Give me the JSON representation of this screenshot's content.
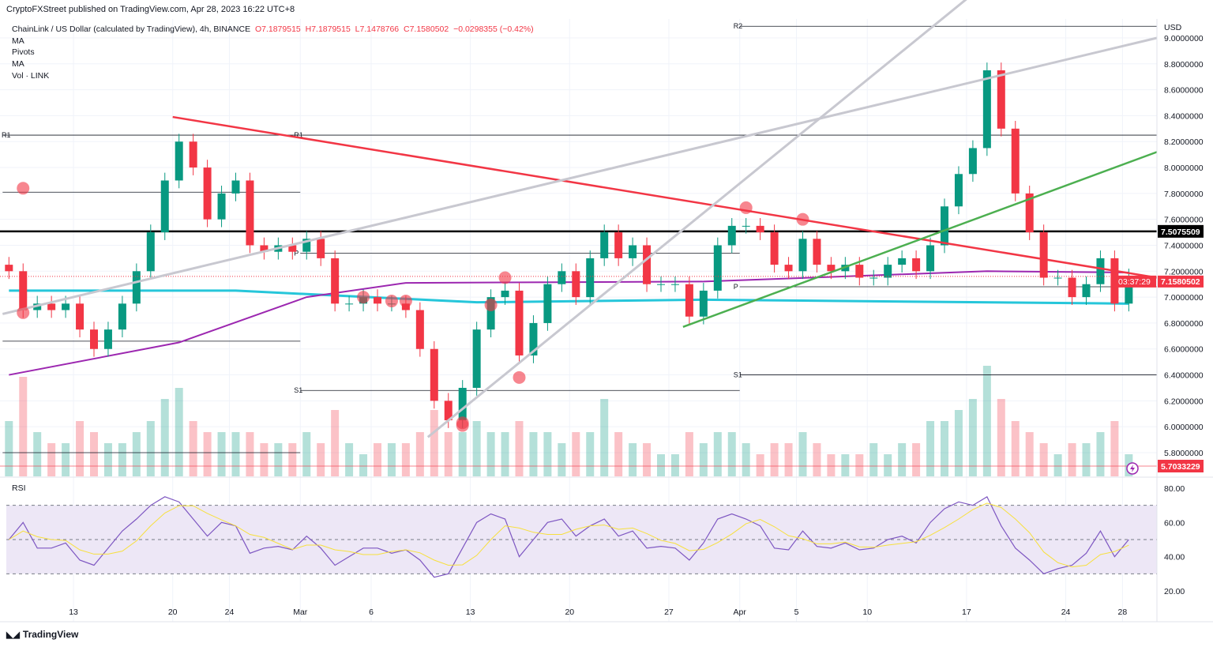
{
  "publisher_line": "CryptoFXStreet published on TradingView.com, Apr 28, 2023 16:22 UTC+8",
  "legend": {
    "symbol": "ChainLink / US Dollar (calculated by TradingView), 4h, BINANCE",
    "open": "O7.1879515",
    "high": "H7.1879515",
    "low": "L7.1478766",
    "close": "C7.1580502",
    "change": "−0.0298355 (−0.42%)",
    "indicators": [
      "MA",
      "Pivots",
      "MA",
      "Vol · LINK"
    ]
  },
  "rsi_label": "RSI",
  "brand": "TradingView",
  "currency": "USD",
  "colors": {
    "up": "#089981",
    "down": "#f23645",
    "resistance": "#f23645",
    "support_trend": "#4caf50",
    "trend_gray": "#c8c8d0",
    "ma_cyan": "#26c6da",
    "ma_purple": "#9c27b0",
    "rsi": "#7e57c2",
    "rsi_ma": "#f7e03d",
    "rsi_band": "#ede7f6"
  },
  "chart_data": [
    {
      "type": "candlestick",
      "ylim": [
        5.7,
        9.1
      ],
      "y_ticks": [
        "9.0000000",
        "8.8000000",
        "8.6000000",
        "8.4000000",
        "8.2000000",
        "8.0000000",
        "7.8000000",
        "7.6000000",
        "7.4000000",
        "7.2000000",
        "7.0000000",
        "6.8000000",
        "6.6000000",
        "6.4000000",
        "6.2000000",
        "6.0000000",
        "5.8000000"
      ],
      "x_ticks": [
        {
          "label": "13",
          "day": "Feb 13"
        },
        {
          "label": "20",
          "day": "Feb 20"
        },
        {
          "label": "24",
          "day": "Feb 24"
        },
        {
          "label": "Mar",
          "day": "Mar 1"
        },
        {
          "label": "6",
          "day": "Mar 6"
        },
        {
          "label": "13",
          "day": "Mar 13"
        },
        {
          "label": "20",
          "day": "Mar 20"
        },
        {
          "label": "27",
          "day": "Mar 27"
        },
        {
          "label": "Apr",
          "day": "Apr 1"
        },
        {
          "label": "5",
          "day": "Apr 5"
        },
        {
          "label": "10",
          "day": "Apr 10"
        },
        {
          "label": "17",
          "day": "Apr 17"
        },
        {
          "label": "24",
          "day": "Apr 24"
        },
        {
          "label": "28",
          "day": "Apr 28"
        }
      ],
      "days": [
        "Feb 8",
        "Feb 9",
        "Feb 10",
        "Feb 11",
        "Feb 12",
        "Feb 13",
        "Feb 14",
        "Feb 15",
        "Feb 16",
        "Feb 17",
        "Feb 18",
        "Feb 19",
        "Feb 20",
        "Feb 21",
        "Feb 22",
        "Feb 23",
        "Feb 24",
        "Feb 25",
        "Feb 26",
        "Feb 27",
        "Feb 28",
        "Mar 1",
        "Mar 2",
        "Mar 3",
        "Mar 4",
        "Mar 5",
        "Mar 6",
        "Mar 7",
        "Mar 8",
        "Mar 9",
        "Mar 10",
        "Mar 11",
        "Mar 12",
        "Mar 13",
        "Mar 14",
        "Mar 15",
        "Mar 16",
        "Mar 17",
        "Mar 18",
        "Mar 19",
        "Mar 20",
        "Mar 21",
        "Mar 22",
        "Mar 23",
        "Mar 24",
        "Mar 25",
        "Mar 26",
        "Mar 27",
        "Mar 28",
        "Mar 29",
        "Mar 30",
        "Mar 31",
        "Apr 1",
        "Apr 2",
        "Apr 3",
        "Apr 4",
        "Apr 5",
        "Apr 6",
        "Apr 7",
        "Apr 8",
        "Apr 9",
        "Apr 10",
        "Apr 11",
        "Apr 12",
        "Apr 13",
        "Apr 14",
        "Apr 15",
        "Apr 16",
        "Apr 17",
        "Apr 18",
        "Apr 19",
        "Apr 20",
        "Apr 21",
        "Apr 22",
        "Apr 23",
        "Apr 24",
        "Apr 25",
        "Apr 26",
        "Apr 27",
        "Apr 28"
      ],
      "close": [
        7.2,
        6.9,
        6.95,
        6.9,
        6.95,
        6.75,
        6.6,
        6.75,
        6.95,
        7.2,
        7.5,
        7.9,
        8.2,
        8.0,
        7.6,
        7.8,
        7.9,
        7.4,
        7.35,
        7.4,
        7.35,
        7.45,
        7.3,
        6.95,
        6.95,
        7.0,
        6.95,
        6.95,
        6.9,
        6.6,
        6.2,
        6.05,
        6.3,
        6.75,
        7.0,
        7.05,
        6.55,
        6.8,
        7.1,
        7.2,
        7.0,
        7.3,
        7.5,
        7.3,
        7.4,
        7.1,
        7.1,
        7.1,
        6.85,
        7.05,
        7.4,
        7.55,
        7.55,
        7.5,
        7.25,
        7.2,
        7.45,
        7.25,
        7.2,
        7.25,
        7.15,
        7.15,
        7.25,
        7.3,
        7.2,
        7.4,
        7.7,
        7.95,
        8.15,
        8.75,
        8.3,
        7.8,
        7.5,
        7.15,
        7.15,
        7.0,
        7.1,
        7.3,
        6.95,
        7.16
      ],
      "volume_relative": [
        0.5,
        0.9,
        0.4,
        0.3,
        0.3,
        0.5,
        0.4,
        0.3,
        0.3,
        0.4,
        0.5,
        0.7,
        0.8,
        0.5,
        0.4,
        0.4,
        0.4,
        0.4,
        0.3,
        0.3,
        0.3,
        0.4,
        0.3,
        0.6,
        0.3,
        0.2,
        0.3,
        0.3,
        0.3,
        0.4,
        0.6,
        0.4,
        0.4,
        0.5,
        0.4,
        0.4,
        0.5,
        0.4,
        0.4,
        0.3,
        0.4,
        0.4,
        0.7,
        0.4,
        0.3,
        0.3,
        0.2,
        0.2,
        0.4,
        0.3,
        0.4,
        0.4,
        0.3,
        0.2,
        0.3,
        0.3,
        0.4,
        0.3,
        0.2,
        0.2,
        0.2,
        0.3,
        0.2,
        0.3,
        0.3,
        0.5,
        0.5,
        0.6,
        0.7,
        1.0,
        0.7,
        0.5,
        0.4,
        0.3,
        0.2,
        0.3,
        0.3,
        0.4,
        0.5,
        0.2
      ],
      "horizontal_level": {
        "value": 7.5075509,
        "label": "7.5075509"
      },
      "last_price": {
        "label": "7.1580502",
        "countdown": "03:37:29"
      },
      "volume_last": {
        "label": "5.7033229"
      },
      "pivots": [
        {
          "from": "Feb 8",
          "to": "Mar 1",
          "levels": [
            {
              "name": "R1",
              "value": 8.25
            },
            {
              "name": "",
              "value": 7.81
            },
            {
              "name": "",
              "value": 6.66
            },
            {
              "name": "",
              "value": 5.8
            }
          ]
        },
        {
          "from": "Mar 1",
          "to": "Apr 1",
          "levels": [
            {
              "name": "P",
              "value": 7.34
            },
            {
              "name": "S1",
              "value": 6.28
            }
          ]
        },
        {
          "from": "Mar 1",
          "to": "Apr 29",
          "levels": [
            {
              "name": "R1",
              "value": 8.25
            }
          ]
        },
        {
          "from": "Apr 1",
          "to": "Apr 29",
          "levels": [
            {
              "name": "R2",
              "value": 9.09
            },
            {
              "name": "P",
              "value": 7.08
            },
            {
              "name": "S1",
              "value": 6.4
            }
          ]
        }
      ],
      "trendlines": [
        {
          "name": "descending-resistance",
          "color": "#f23645",
          "points": [
            [
              "Feb 20",
              8.39
            ],
            [
              "Apr 29",
              7.15
            ]
          ]
        },
        {
          "name": "ascending-support",
          "color": "#4caf50",
          "points": [
            [
              "Mar 28",
              6.77
            ],
            [
              "Apr 29",
              8.12
            ]
          ]
        },
        {
          "name": "long-gray-trend",
          "color": "#c8c8d0",
          "points": [
            [
              "Feb 8",
              6.87
            ],
            [
              "Apr 29",
              9.0
            ]
          ]
        },
        {
          "name": "steep-gray-trend",
          "color": "#c8c8d0",
          "points": [
            [
              "Mar 10",
              5.92
            ],
            [
              "Apr 17",
              9.3
            ]
          ]
        }
      ],
      "moving_averages": [
        {
          "color": "#26c6da",
          "points": [
            [
              "Feb 8",
              7.05
            ],
            [
              "Feb 24",
              7.05
            ],
            [
              "Mar 13",
              6.96
            ],
            [
              "Mar 29",
              6.98
            ],
            [
              "Apr 28",
              6.95
            ]
          ]
        },
        {
          "color": "#9c27b0",
          "points": [
            [
              "Feb 8",
              6.4
            ],
            [
              "Feb 20",
              6.65
            ],
            [
              "Mar 1",
              7.0
            ],
            [
              "Mar 8",
              7.11
            ],
            [
              "Mar 29",
              7.12
            ],
            [
              "Apr 18",
              7.2
            ],
            [
              "Apr 28",
              7.19
            ]
          ]
        }
      ],
      "markers": [
        [
          "Feb 9",
          7.84
        ],
        [
          "Feb 9",
          6.88
        ],
        [
          "Mar 5",
          7.0
        ],
        [
          "Mar 7",
          6.97
        ],
        [
          "Mar 8",
          6.97
        ],
        [
          "Mar 14",
          6.94
        ],
        [
          "Mar 15",
          7.15
        ],
        [
          "Mar 16",
          6.38
        ],
        [
          "Mar 12",
          6.01
        ],
        [
          "Mar 12",
          6.03
        ],
        [
          "Apr 1",
          7.69
        ],
        [
          "Apr 5",
          7.6
        ]
      ]
    },
    {
      "type": "line",
      "title": "RSI",
      "ylim": [
        15,
        85
      ],
      "y_ticks": [
        "80.00",
        "60.00",
        "40.00",
        "20.00"
      ],
      "band": [
        30,
        70
      ],
      "rsi": [
        50,
        60,
        45,
        45,
        48,
        38,
        35,
        45,
        55,
        62,
        70,
        75,
        72,
        62,
        52,
        60,
        58,
        42,
        45,
        46,
        44,
        52,
        45,
        35,
        40,
        45,
        45,
        42,
        44,
        38,
        28,
        30,
        45,
        60,
        65,
        62,
        40,
        50,
        60,
        62,
        52,
        58,
        62,
        52,
        55,
        45,
        46,
        45,
        38,
        48,
        62,
        65,
        62,
        58,
        45,
        44,
        55,
        46,
        45,
        48,
        44,
        45,
        50,
        52,
        48,
        60,
        68,
        72,
        70,
        75,
        58,
        45,
        38,
        30,
        33,
        35,
        42,
        55,
        40,
        50
      ]
    }
  ]
}
